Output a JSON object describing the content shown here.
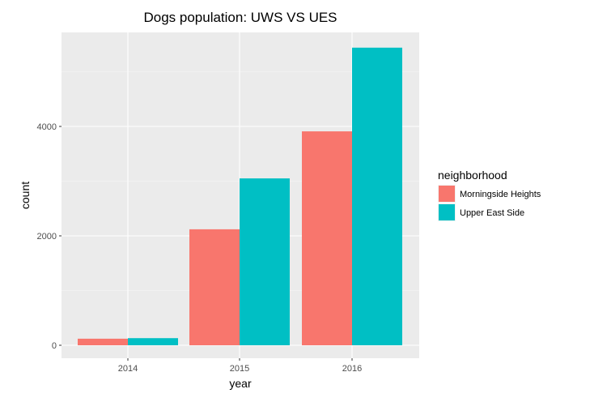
{
  "chart_data": {
    "type": "bar",
    "title": "Dogs population: UWS VS UES",
    "xlabel": "year",
    "ylabel": "count",
    "categories": [
      "2014",
      "2015",
      "2016"
    ],
    "series": [
      {
        "name": "Morningside Heights",
        "values": [
          120,
          2120,
          3910
        ],
        "color": "#F8766D"
      },
      {
        "name": "Upper East Side",
        "values": [
          130,
          3050,
          5440
        ],
        "color": "#00BFC4"
      }
    ],
    "ylim": [
      0,
      5700
    ],
    "yticks": [
      0,
      2000,
      4000
    ],
    "y_minor_ticks": [
      1000,
      3000,
      5000
    ],
    "grid": true,
    "panel_background": "#EBEBEB",
    "grid_color": "#FFFFFF",
    "legend": {
      "title": "neighborhood",
      "position": "right"
    }
  }
}
